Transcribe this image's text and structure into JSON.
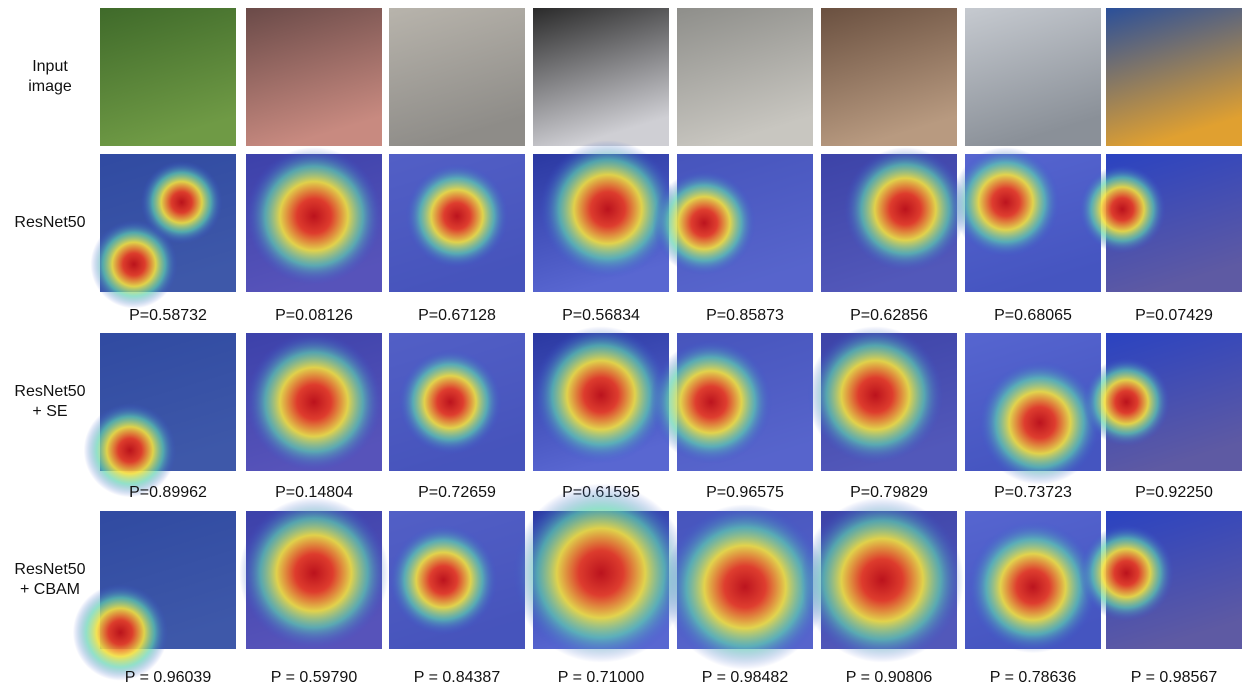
{
  "input_row": {
    "label_lines": [
      "Input",
      "image"
    ]
  },
  "rows": [
    {
      "label_lines": [
        "ResNet50"
      ],
      "probabilities": [
        "P=0.58732",
        "P=0.08126",
        "P=0.67128",
        "P=0.56834",
        "P=0.85873",
        "P=0.62856",
        "P=0.68065",
        "P=0.07429"
      ]
    },
    {
      "label_lines": [
        "ResNet50",
        "+ SE"
      ],
      "probabilities": [
        "P=0.89962",
        "P=0.14804",
        "P=0.72659",
        "P=0.61595",
        "P=0.96575",
        "P=0.79829",
        "P=0.73723",
        "P=0.92250"
      ]
    },
    {
      "label_lines": [
        "ResNet50",
        "+ CBAM"
      ],
      "probabilities": [
        "P = 0.96039",
        "P = 0.59790",
        "P = 0.84387",
        "P = 0.71000",
        "P = 0.98482",
        "P = 0.90806",
        "P = 0.78636",
        "P = 0.98567"
      ]
    }
  ]
}
